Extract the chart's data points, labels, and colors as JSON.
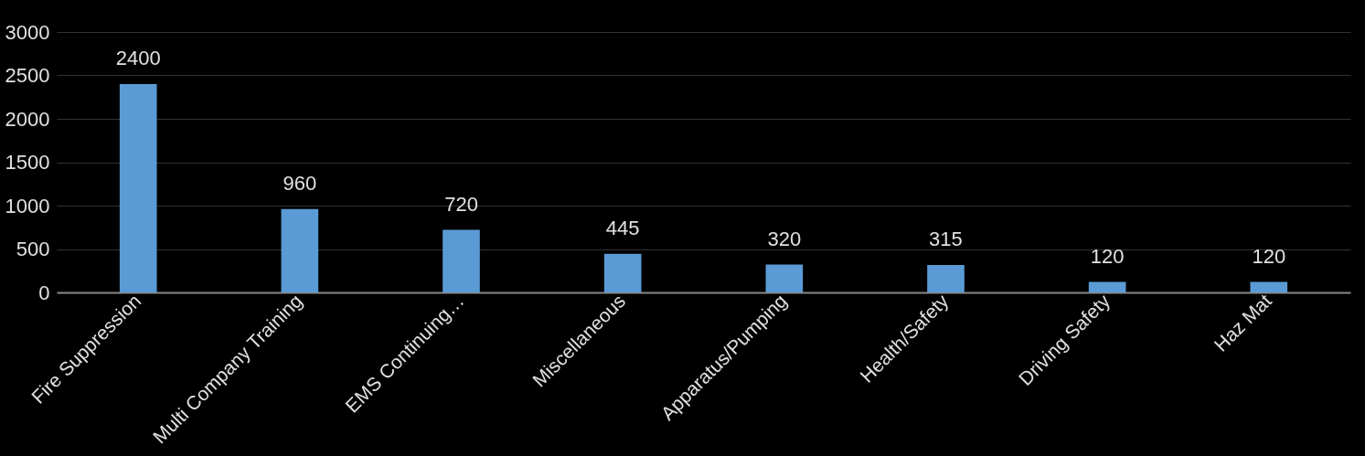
{
  "chart_data": {
    "type": "bar",
    "categories": [
      "Fire Suppression",
      "Multi Company Training",
      "EMS Continuing…",
      "Miscellaneous",
      "Apparatus/Pumping",
      "Health/Safety",
      "Driving Safety",
      "Haz Mat"
    ],
    "values": [
      2400,
      960,
      720,
      445,
      320,
      315,
      120,
      120
    ],
    "color": "#5b9bd5",
    "ylim": [
      0,
      3000
    ],
    "yticks": [
      0,
      500,
      1000,
      1500,
      2000,
      2500,
      3000
    ],
    "grid": "y",
    "data_labels": true
  }
}
